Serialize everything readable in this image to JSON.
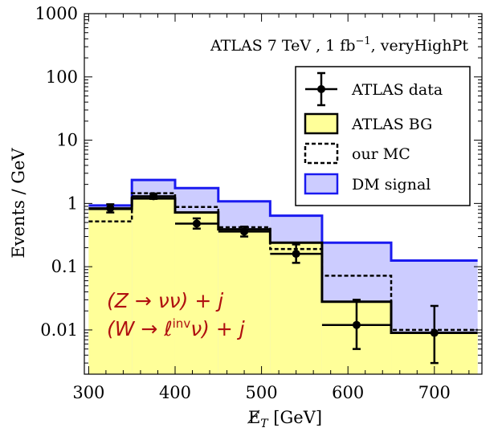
{
  "chart_data": {
    "type": "step-histogram",
    "xlabel": "E̸T [GeV]",
    "ylabel": "Events / GeV",
    "annotation": "ATLAS 7 TeV , 1 fb⁻¹, veryHighPt",
    "process_labels": [
      "(Z → νν) + j",
      "(W → ℓinvν) + j"
    ],
    "xlim": [
      295,
      755
    ],
    "ylim": [
      0.002,
      1000
    ],
    "yscale": "log",
    "x_ticks": [
      300,
      400,
      500,
      600,
      700
    ],
    "y_ticks": [
      {
        "value": 0.01,
        "label": "0.01"
      },
      {
        "value": 0.1,
        "label": "0.1"
      },
      {
        "value": 1,
        "label": "1"
      },
      {
        "value": 10,
        "label": "10"
      },
      {
        "value": 100,
        "label": "100"
      },
      {
        "value": 1000,
        "label": "1000"
      }
    ],
    "bin_edges": [
      300,
      350,
      400,
      450,
      510,
      570,
      650,
      750
    ],
    "series": [
      {
        "name": "ATLAS BG",
        "style": "filled",
        "color": "#ffff99",
        "edge": "#000000",
        "values": [
          0.82,
          1.2,
          0.72,
          0.39,
          0.24,
          0.028,
          0.009
        ]
      },
      {
        "name": "our MC",
        "style": "dashed",
        "color": "#000000",
        "values": [
          0.52,
          1.45,
          0.88,
          0.42,
          0.19,
          0.072,
          0.01
        ]
      },
      {
        "name": "DM signal",
        "style": "filled-outline",
        "color": "#ccccff",
        "edge": "#1a1af0",
        "values": [
          0.93,
          2.35,
          1.75,
          1.08,
          0.64,
          0.24,
          0.125
        ]
      },
      {
        "name": "ATLAS data",
        "style": "points-with-errors",
        "color": "#000000",
        "points": [
          {
            "x": 325,
            "y": 0.84,
            "lo": 0.72,
            "hi": 0.97,
            "xerr": 25
          },
          {
            "x": 375,
            "y": 1.3,
            "lo": 1.18,
            "hi": 1.43,
            "xerr": 25
          },
          {
            "x": 425,
            "y": 0.48,
            "lo": 0.4,
            "hi": 0.58,
            "xerr": 25
          },
          {
            "x": 480,
            "y": 0.36,
            "lo": 0.3,
            "hi": 0.43,
            "xerr": 30
          },
          {
            "x": 540,
            "y": 0.16,
            "lo": 0.115,
            "hi": 0.225,
            "xerr": 30
          },
          {
            "x": 610,
            "y": 0.012,
            "lo": 0.005,
            "hi": 0.03,
            "xerr": 40
          },
          {
            "x": 700,
            "y": 0.009,
            "lo": 0.003,
            "hi": 0.024,
            "xerr": 50
          }
        ]
      }
    ],
    "legend": {
      "position": "upper-right",
      "entries": [
        {
          "label": "ATLAS data",
          "type": "data"
        },
        {
          "label": "ATLAS BG",
          "type": "bg"
        },
        {
          "label": "our MC",
          "type": "mc"
        },
        {
          "label": "DM signal",
          "type": "signal"
        }
      ]
    }
  }
}
